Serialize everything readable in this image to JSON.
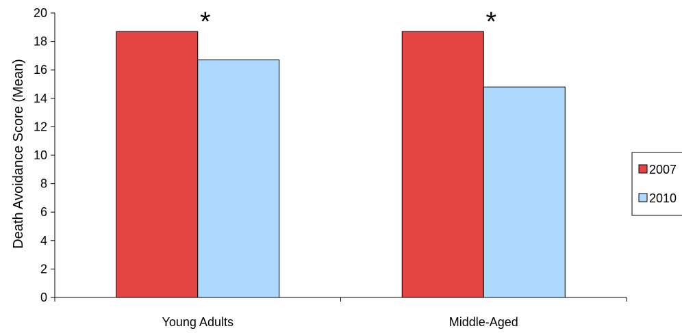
{
  "chart_data": {
    "type": "bar",
    "title": "",
    "xlabel": "",
    "ylabel": "Death Avoidance Score (Mean)",
    "ylim": [
      0,
      20
    ],
    "yticks": [
      0,
      2,
      4,
      6,
      8,
      10,
      12,
      14,
      16,
      18,
      20
    ],
    "grid": false,
    "legend_position": "right",
    "categories": [
      "Young Adults",
      "Middle-Aged"
    ],
    "series": [
      {
        "name": "2007",
        "color": "#e44542",
        "values": [
          18.7,
          18.7
        ]
      },
      {
        "name": "2010",
        "color": "#aed9ff",
        "values": [
          16.7,
          14.8
        ]
      }
    ],
    "annotations": [
      {
        "text": "*",
        "category": "Young Adults"
      },
      {
        "text": "*",
        "category": "Middle-Aged"
      }
    ]
  }
}
